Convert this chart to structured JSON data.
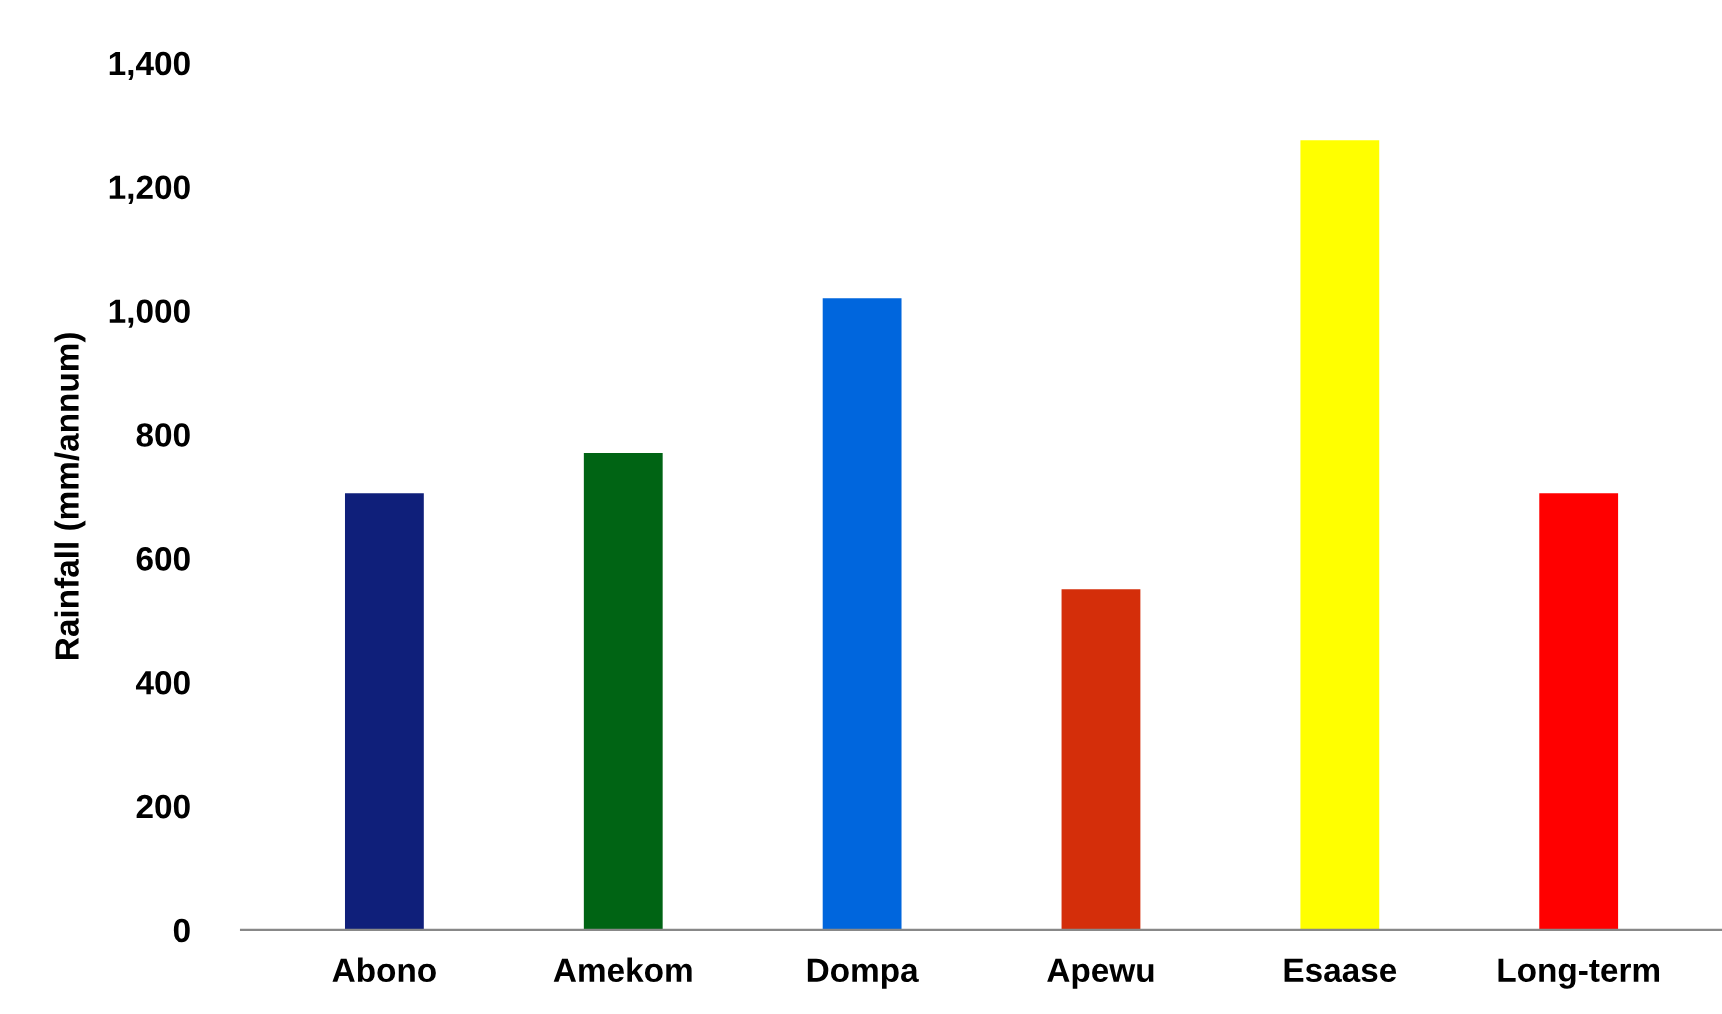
{
  "chart_data": {
    "type": "bar",
    "ylabel": "Rainfall (mm/annum)",
    "categories": [
      "Abono",
      "Amekom",
      "Dompa",
      "Apewu",
      "Esaase",
      "Long-term"
    ],
    "values": [
      705,
      770,
      1020,
      550,
      1275,
      705
    ],
    "colors": [
      "#0f1f7a",
      "#006414",
      "#0066dd",
      "#d42e0a",
      "#ffff00",
      "#ff0000"
    ],
    "ylim": [
      0,
      1400
    ],
    "yticks": [
      {
        "value": 0,
        "label": "0"
      },
      {
        "value": 200,
        "label": "200"
      },
      {
        "value": 400,
        "label": "400"
      },
      {
        "value": 600,
        "label": "600"
      },
      {
        "value": 800,
        "label": "800"
      },
      {
        "value": 1000,
        "label": "1,000"
      },
      {
        "value": 1200,
        "label": "1,200"
      },
      {
        "value": 1400,
        "label": "1,400"
      }
    ],
    "grid": false
  }
}
